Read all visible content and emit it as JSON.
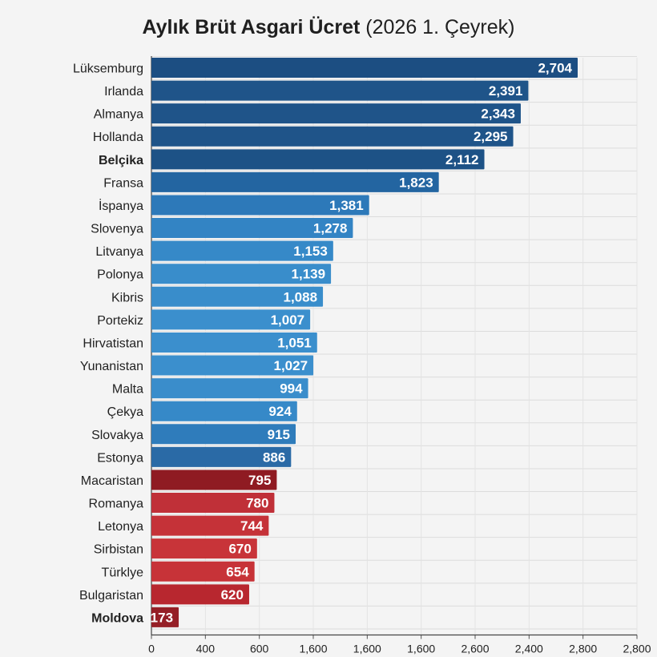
{
  "chart_data": {
    "type": "bar",
    "orientation": "horizontal",
    "title": "Aylık Brüt Asgari Ücret",
    "subtitle": "(2026 1. Çeyrek)",
    "categories": [
      "Lüksemburg",
      "Irlanda",
      "Almanya",
      "Hollanda",
      "Belçika",
      "Fransa",
      "İspanya",
      "Slovenya",
      "Litvanya",
      "Polonya",
      "Kibris",
      "Portekiz",
      "Hirvatistan",
      "Yunanistan",
      "Malta",
      "Çekya",
      "Slovakya",
      "Estonya",
      "Macaristan",
      "Romanya",
      "Letonya",
      "Sirbistan",
      "Türklye",
      "Bulgaristan",
      "Moldova"
    ],
    "values": [
      2704,
      2391,
      2343,
      2295,
      2112,
      1823,
      1381,
      1278,
      1153,
      1139,
      1088,
      1007,
      1051,
      1027,
      994,
      924,
      915,
      886,
      795,
      780,
      744,
      670,
      654,
      620,
      173
    ],
    "value_labels": [
      "2,704",
      "2,391",
      "2,343",
      "2,295",
      "2,112",
      "1,823",
      "1,381",
      "1,278",
      "1,153",
      "1,139",
      "1,088",
      "1,007",
      "1,051",
      "1,027",
      "994",
      "924",
      "915",
      "886",
      "795",
      "780",
      "744",
      "670",
      "654",
      "620",
      "173"
    ],
    "bold_categories": [
      "Belçika",
      "Moldova"
    ],
    "bar_colors": [
      "#1c4e82",
      "#1f5489",
      "#1f5489",
      "#1f5489",
      "#1d5286",
      "#2365a1",
      "#2d79b9",
      "#3384c4",
      "#3689c8",
      "#398dcb",
      "#398dcb",
      "#3b8fcd",
      "#3b8fcd",
      "#3b8fcd",
      "#3a8dcb",
      "#3689c8",
      "#2f7cbb",
      "#2a6aa6",
      "#8f1b22",
      "#c03038",
      "#c53238",
      "#c83439",
      "#c73338",
      "#b8272f",
      "#951f26"
    ],
    "x_ticks": [
      "0",
      "400",
      "600",
      "1,600",
      "1,600",
      "1,600",
      "2,600",
      "2,400",
      "2,800",
      "2,800"
    ],
    "xlim": [
      0,
      2800
    ],
    "grid": true
  }
}
